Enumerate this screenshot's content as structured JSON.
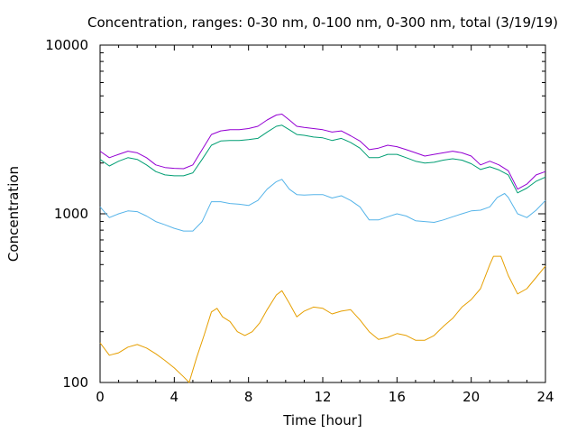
{
  "chart_data": {
    "type": "line",
    "title": "Concentration, ranges: 0-30 nm, 0-100 nm, 0-300 nm, total (3/19/19)",
    "xlabel": "Time [hour]",
    "ylabel": "Concentration",
    "xlim": [
      0,
      24
    ],
    "ylim": [
      100,
      10000
    ],
    "y_scale": "log",
    "x_ticks": [
      "0",
      "4",
      "8",
      "12",
      "16",
      "20",
      "24"
    ],
    "y_ticks": [
      "100",
      "1000",
      "10000"
    ],
    "grid": false,
    "series": [
      {
        "color": "#e69f00",
        "x": [
          0,
          0.5,
          1,
          1.5,
          2,
          2.5,
          3,
          3.5,
          4,
          4.5,
          4.8,
          5.2,
          5.6,
          6,
          6.3,
          6.6,
          7,
          7.4,
          7.8,
          8.2,
          8.6,
          9,
          9.5,
          9.8,
          10.2,
          10.6,
          11,
          11.5,
          12,
          12.5,
          13,
          13.5,
          14,
          14.5,
          15,
          15.5,
          16,
          16.5,
          17,
          17.5,
          18,
          18.5,
          19,
          19.5,
          20,
          20.5,
          21,
          21.2,
          21.6,
          22,
          22.5,
          23,
          23.5,
          24
        ],
        "values": [
          172,
          145,
          150,
          162,
          168,
          160,
          148,
          135,
          122,
          108,
          100,
          140,
          190,
          262,
          275,
          245,
          230,
          200,
          190,
          200,
          225,
          270,
          330,
          350,
          295,
          245,
          265,
          280,
          275,
          255,
          265,
          270,
          235,
          200,
          180,
          185,
          195,
          190,
          178,
          178,
          190,
          215,
          240,
          280,
          310,
          360,
          500,
          560,
          560,
          430,
          335,
          360,
          420,
          490
        ]
      },
      {
        "color": "#56b4e9",
        "x": [
          0,
          0.5,
          1,
          1.5,
          2,
          2.5,
          3,
          3.5,
          4,
          4.5,
          5,
          5.5,
          6,
          6.5,
          7,
          7.5,
          8,
          8.5,
          9,
          9.5,
          9.8,
          10.2,
          10.6,
          11,
          11.5,
          12,
          12.5,
          13,
          13.5,
          14,
          14.5,
          15,
          15.5,
          16,
          16.5,
          17,
          17.5,
          18,
          18.5,
          19,
          19.5,
          20,
          20.5,
          21,
          21.4,
          21.8,
          22,
          22.5,
          23,
          23.5,
          24
        ],
        "values": [
          1100,
          950,
          1000,
          1040,
          1030,
          970,
          900,
          860,
          820,
          790,
          790,
          900,
          1180,
          1180,
          1150,
          1140,
          1120,
          1200,
          1400,
          1550,
          1600,
          1400,
          1300,
          1290,
          1300,
          1300,
          1240,
          1280,
          1200,
          1100,
          920,
          920,
          960,
          1000,
          970,
          910,
          900,
          890,
          920,
          960,
          1000,
          1040,
          1050,
          1100,
          1250,
          1320,
          1250,
          1000,
          950,
          1050,
          1200
        ]
      },
      {
        "color": "#009e73",
        "x": [
          0,
          0.5,
          1,
          1.5,
          2,
          2.5,
          3,
          3.5,
          4,
          4.5,
          5,
          5.5,
          6,
          6.5,
          7,
          7.5,
          8,
          8.5,
          9,
          9.5,
          9.8,
          10.2,
          10.6,
          11,
          11.5,
          12,
          12.5,
          13,
          13.5,
          14,
          14.5,
          15,
          15.5,
          16,
          16.5,
          17,
          17.5,
          18,
          18.5,
          19,
          19.5,
          20,
          20.5,
          21,
          21.5,
          22,
          22.5,
          23,
          23.5,
          24
        ],
        "values": [
          2100,
          1920,
          2050,
          2150,
          2100,
          1950,
          1780,
          1700,
          1680,
          1680,
          1750,
          2100,
          2550,
          2700,
          2720,
          2720,
          2750,
          2800,
          3050,
          3300,
          3350,
          3150,
          2950,
          2920,
          2850,
          2820,
          2720,
          2800,
          2650,
          2450,
          2150,
          2150,
          2250,
          2250,
          2150,
          2050,
          2000,
          2020,
          2080,
          2120,
          2080,
          1980,
          1830,
          1900,
          1820,
          1700,
          1330,
          1420,
          1560,
          1650
        ]
      },
      {
        "color": "#9400d3",
        "x": [
          0,
          0.5,
          1,
          1.5,
          2,
          2.5,
          3,
          3.5,
          4,
          4.5,
          5,
          5.5,
          6,
          6.5,
          7,
          7.5,
          8,
          8.5,
          9,
          9.5,
          9.8,
          10.2,
          10.6,
          11,
          11.5,
          12,
          12.5,
          13,
          13.5,
          14,
          14.5,
          15,
          15.5,
          16,
          16.5,
          17,
          17.5,
          18,
          18.5,
          19,
          19.5,
          20,
          20.5,
          21,
          21.5,
          22,
          22.5,
          23,
          23.5,
          24
        ],
        "values": [
          2350,
          2150,
          2250,
          2350,
          2300,
          2150,
          1950,
          1880,
          1860,
          1850,
          1950,
          2400,
          2950,
          3100,
          3150,
          3150,
          3200,
          3300,
          3600,
          3850,
          3900,
          3600,
          3300,
          3250,
          3200,
          3150,
          3050,
          3100,
          2900,
          2700,
          2400,
          2450,
          2550,
          2500,
          2400,
          2300,
          2200,
          2250,
          2300,
          2350,
          2300,
          2200,
          1950,
          2050,
          1950,
          1800,
          1400,
          1500,
          1700,
          1780
        ]
      }
    ]
  }
}
